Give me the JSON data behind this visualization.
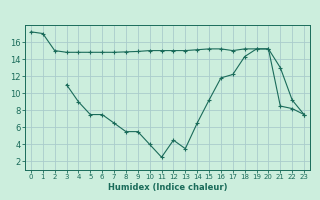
{
  "xlabel": "Humidex (Indice chaleur)",
  "bg_color": "#cceedd",
  "line_color": "#1a6b5a",
  "grid_color": "#aacccc",
  "ylim": [
    1,
    18
  ],
  "xlim": [
    -0.5,
    23.5
  ],
  "yticks": [
    2,
    4,
    6,
    8,
    10,
    12,
    14,
    16
  ],
  "xticks": [
    0,
    1,
    2,
    3,
    4,
    5,
    6,
    7,
    8,
    9,
    10,
    11,
    12,
    13,
    14,
    15,
    16,
    17,
    18,
    19,
    20,
    21,
    22,
    23
  ],
  "curve1_x": [
    0,
    1,
    2,
    3,
    4,
    5,
    6,
    7,
    8,
    9,
    10,
    11,
    12,
    13,
    14,
    15,
    16,
    17,
    18,
    19,
    20,
    21,
    22,
    23
  ],
  "curve1_y": [
    17.2,
    17.0,
    15.0,
    14.8,
    14.8,
    14.8,
    14.8,
    14.8,
    14.85,
    14.9,
    15.0,
    15.0,
    15.0,
    15.0,
    15.1,
    15.2,
    15.2,
    15.0,
    15.2,
    15.2,
    15.2,
    13.0,
    9.2,
    7.5
  ],
  "curve2_x": [
    3,
    4,
    5,
    6,
    7,
    8,
    9,
    10,
    11,
    12,
    13,
    14,
    15,
    16,
    17,
    18,
    19,
    20,
    21,
    22,
    23
  ],
  "curve2_y": [
    11.0,
    9.0,
    7.5,
    7.5,
    6.5,
    5.5,
    5.5,
    4.0,
    2.5,
    4.5,
    3.5,
    6.5,
    9.2,
    11.8,
    12.2,
    14.3,
    15.2,
    15.2,
    8.5,
    8.2,
    7.5
  ]
}
